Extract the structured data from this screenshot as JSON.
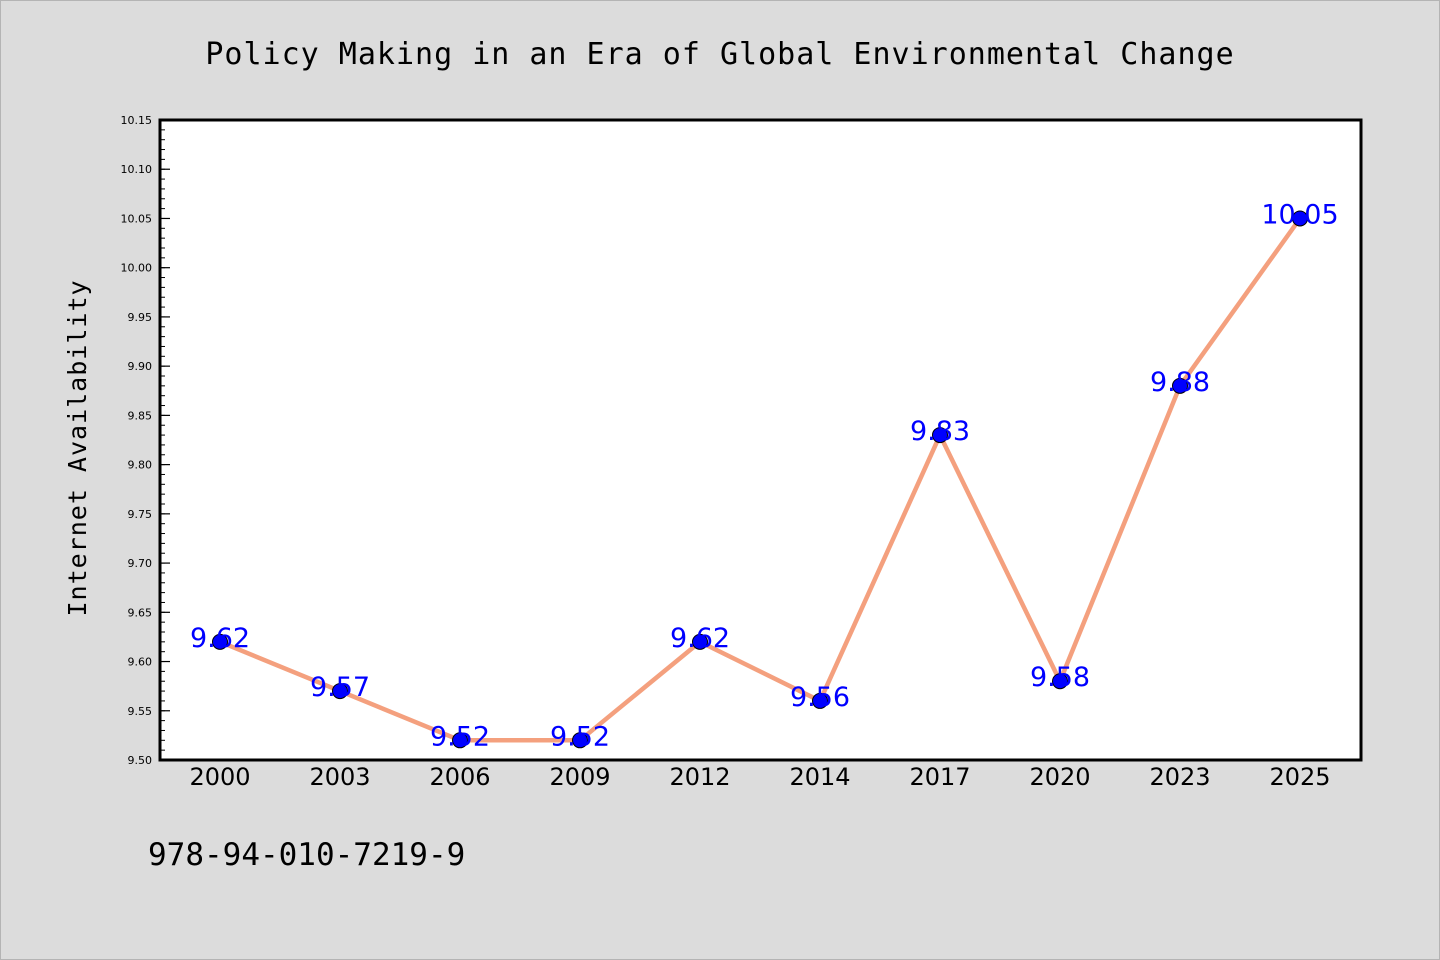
{
  "chart_data": {
    "type": "line",
    "title": "Policy Making in an Era of Global Environmental Change",
    "xlabel": "",
    "ylabel": "Internet Availability",
    "categories": [
      "2000",
      "2003",
      "2006",
      "2009",
      "2012",
      "2014",
      "2017",
      "2020",
      "2023",
      "2025"
    ],
    "values": [
      9.62,
      9.57,
      9.52,
      9.52,
      9.62,
      9.56,
      9.83,
      9.58,
      9.88,
      10.05
    ],
    "data_labels": [
      "9.62",
      "9.57",
      "9.52",
      "9.52",
      "9.62",
      "9.56",
      "9.83",
      "9.58",
      "9.88",
      "10.05"
    ],
    "y_ticks": [
      "9.50",
      "9.55",
      "9.60",
      "9.65",
      "9.70",
      "9.75",
      "9.80",
      "9.85",
      "9.90",
      "9.95",
      "10.00",
      "10.05",
      "10.10",
      "10.15"
    ],
    "ylim": [
      9.5,
      10.15
    ],
    "grid": false,
    "legend": "none",
    "colors": {
      "line": "#f4a07e",
      "marker": "#0000ff",
      "labels": "#0000ff",
      "background": "#dcdcdc",
      "plot_background": "#ffffff"
    }
  },
  "footer": {
    "isbn": "978-94-010-7219-9"
  }
}
